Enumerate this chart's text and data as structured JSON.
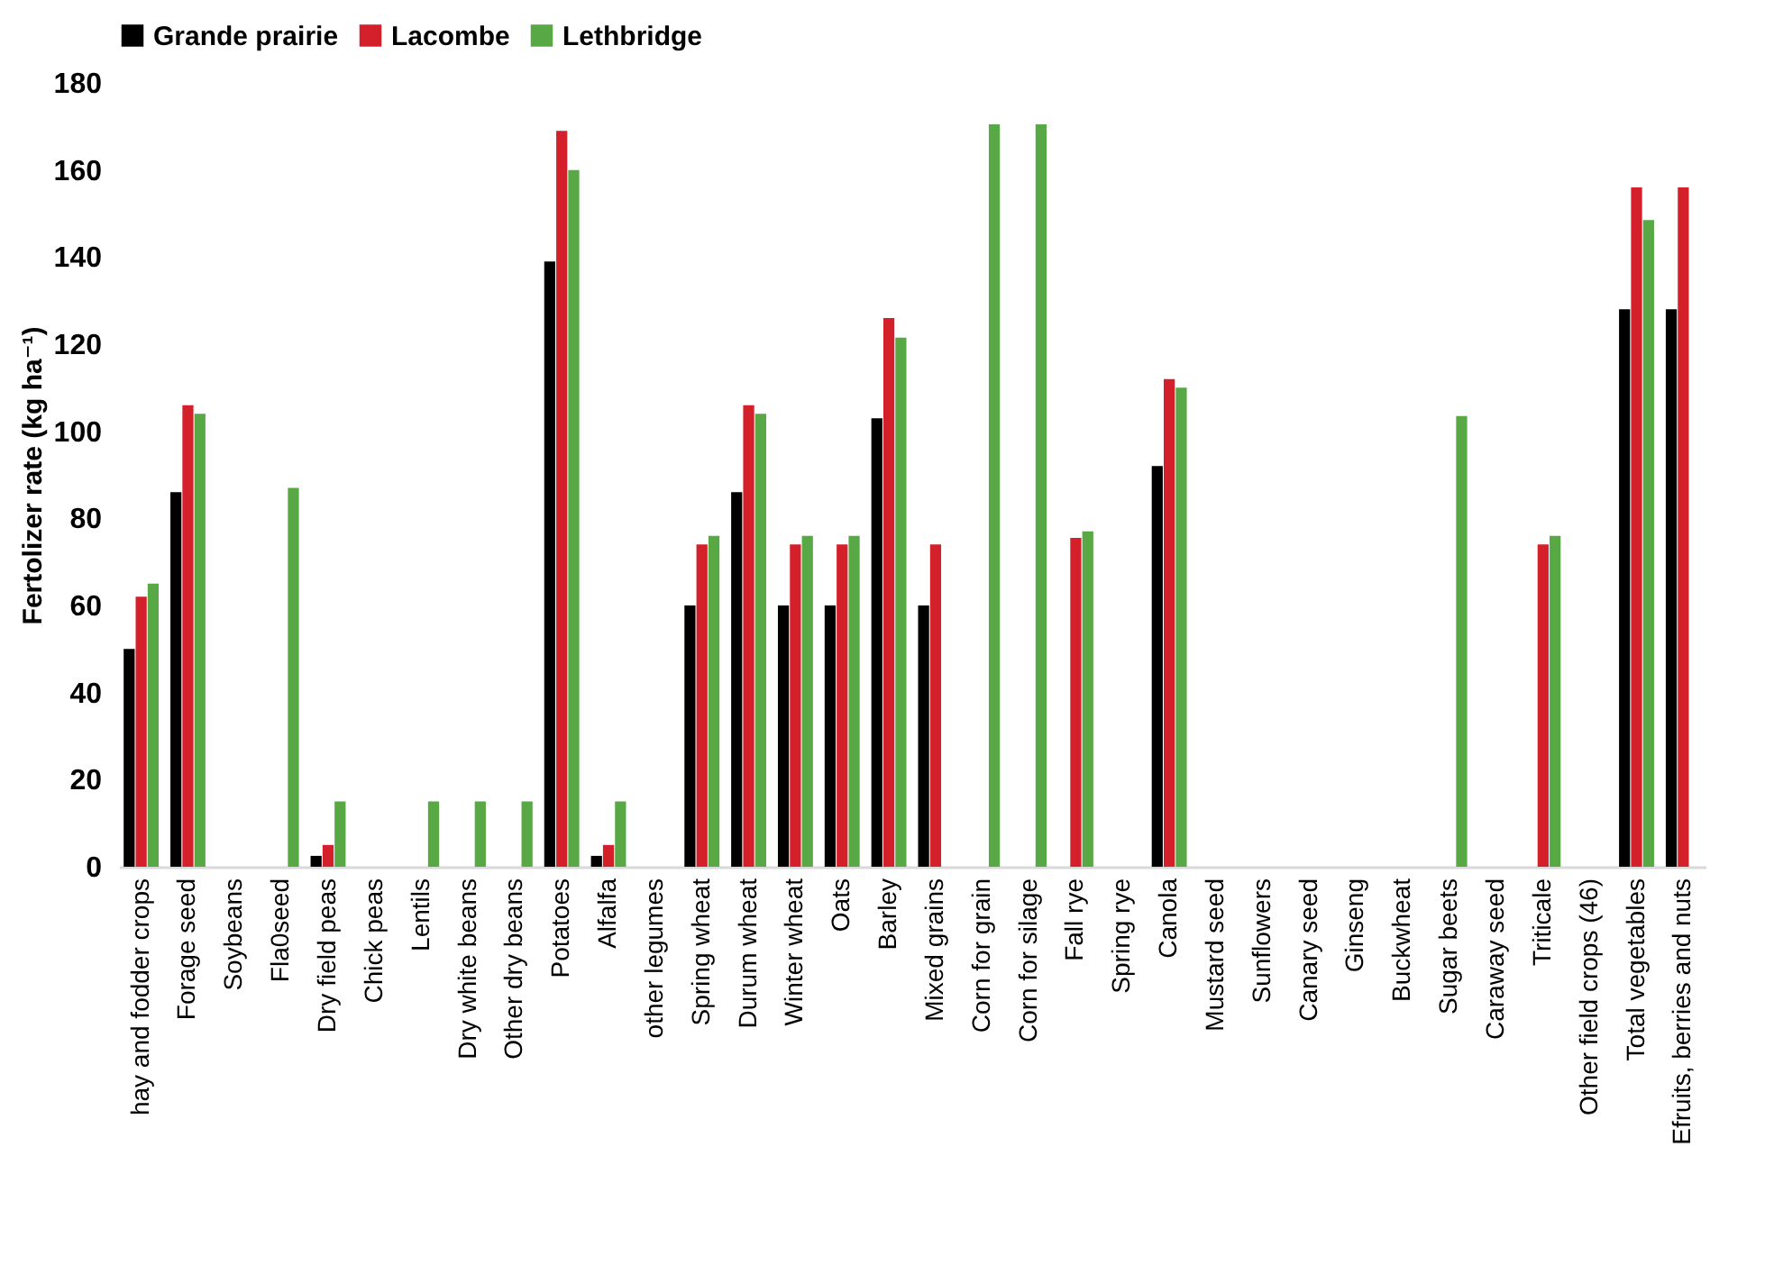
{
  "chart_data": {
    "type": "bar",
    "ylabel": "Fertolizer rate (kg ha⁻¹)",
    "categories": [
      "hay and fodder crops",
      "Forage seed",
      "Soybeans",
      "Fla0seed",
      "Dry field peas",
      "Chick peas",
      "Lentils",
      "Dry white beans",
      "Other dry beans",
      "Potatoes",
      "Alfalfa",
      "other legumes",
      "Spring wheat",
      "Durum wheat",
      "Winter wheat",
      "Oats",
      "Barley",
      "Mixed grains",
      "Corn for grain",
      "Corn for silage",
      "Fall rye",
      "Spring rye",
      "Canola",
      "Mustard seed",
      "Sunflowers",
      "Canary seed",
      "Ginseng",
      "Buckwheat",
      "Sugar beets",
      "Caraway seed",
      "Triticale",
      "Other field crops (46)",
      "Total vegetables",
      "Efruits, berries and nuts"
    ],
    "series": [
      {
        "name": "Grande prairie",
        "color": "#000000",
        "values": [
          50,
          86,
          null,
          null,
          2.5,
          null,
          null,
          null,
          null,
          139,
          2.5,
          null,
          60,
          86,
          60,
          60,
          103,
          60,
          null,
          null,
          null,
          null,
          92,
          null,
          null,
          null,
          null,
          null,
          null,
          null,
          null,
          null,
          128,
          128
        ]
      },
      {
        "name": "Lacombe",
        "color": "#d4202a",
        "values": [
          62,
          106,
          null,
          null,
          5,
          null,
          null,
          null,
          null,
          169,
          5,
          null,
          74,
          106,
          74,
          74,
          126,
          74,
          null,
          null,
          75.5,
          null,
          112,
          null,
          null,
          null,
          null,
          null,
          null,
          null,
          74,
          null,
          156,
          156
        ]
      },
      {
        "name": "Lethbridge",
        "color": "#58a846",
        "values": [
          65,
          104,
          null,
          87,
          15,
          null,
          15,
          15,
          15,
          160,
          15,
          null,
          76,
          104,
          76,
          76,
          121.5,
          null,
          170.5,
          170.5,
          77,
          null,
          110,
          null,
          null,
          null,
          null,
          null,
          103.5,
          null,
          76,
          null,
          148.5,
          null
        ]
      }
    ],
    "ylim": [
      0,
      180
    ],
    "yticks": [
      0,
      20,
      40,
      60,
      80,
      100,
      120,
      140,
      160,
      180
    ],
    "grid": false,
    "legend": "top"
  }
}
